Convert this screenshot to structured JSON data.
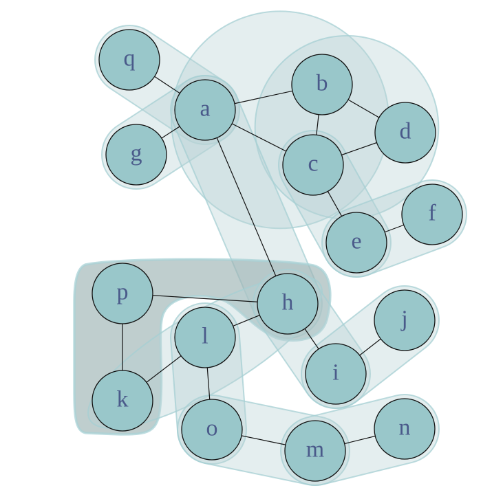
{
  "diagram": {
    "type": "hypergraph",
    "style": {
      "node_fill": "#99c7ca",
      "node_stroke": "#111111",
      "label_color": "#4a5a8a",
      "hyperedge_fill": "#b9d3d6",
      "hyperedge_stroke": "#a6cfd3",
      "highlighted_hyperedge_fill": "#9db4b3"
    },
    "nodes": [
      {
        "id": "q",
        "label": "q"
      },
      {
        "id": "a",
        "label": "a"
      },
      {
        "id": "g",
        "label": "g"
      },
      {
        "id": "b",
        "label": "b"
      },
      {
        "id": "c",
        "label": "c"
      },
      {
        "id": "d",
        "label": "d"
      },
      {
        "id": "e",
        "label": "e"
      },
      {
        "id": "f",
        "label": "f"
      },
      {
        "id": "p",
        "label": "p"
      },
      {
        "id": "h",
        "label": "h"
      },
      {
        "id": "l",
        "label": "l"
      },
      {
        "id": "k",
        "label": "k"
      },
      {
        "id": "i",
        "label": "i"
      },
      {
        "id": "j",
        "label": "j"
      },
      {
        "id": "o",
        "label": "o"
      },
      {
        "id": "m",
        "label": "m"
      },
      {
        "id": "n",
        "label": "n"
      }
    ],
    "edges": [
      [
        "q",
        "a"
      ],
      [
        "g",
        "a"
      ],
      [
        "a",
        "b"
      ],
      [
        "a",
        "c"
      ],
      [
        "a",
        "h"
      ],
      [
        "b",
        "c"
      ],
      [
        "b",
        "d"
      ],
      [
        "c",
        "d"
      ],
      [
        "c",
        "e"
      ],
      [
        "e",
        "f"
      ],
      [
        "p",
        "h"
      ],
      [
        "p",
        "k"
      ],
      [
        "k",
        "l"
      ],
      [
        "l",
        "h"
      ],
      [
        "l",
        "o"
      ],
      [
        "h",
        "i"
      ],
      [
        "i",
        "j"
      ],
      [
        "o",
        "m"
      ],
      [
        "m",
        "n"
      ]
    ],
    "hyperedges": [
      {
        "id": "he-q-a",
        "members": [
          "q",
          "a"
        ]
      },
      {
        "id": "he-g-a",
        "members": [
          "g",
          "a"
        ]
      },
      {
        "id": "he-a-b-c",
        "members": [
          "a",
          "b",
          "c"
        ]
      },
      {
        "id": "he-b-c-d",
        "members": [
          "b",
          "c",
          "d"
        ]
      },
      {
        "id": "he-c-e",
        "members": [
          "c",
          "e"
        ]
      },
      {
        "id": "he-e-f",
        "members": [
          "e",
          "f"
        ]
      },
      {
        "id": "he-a-h",
        "members": [
          "a",
          "h"
        ]
      },
      {
        "id": "he-p-h-k",
        "members": [
          "p",
          "h",
          "k"
        ],
        "highlighted": true
      },
      {
        "id": "he-k-l-h",
        "members": [
          "k",
          "l",
          "h"
        ]
      },
      {
        "id": "he-l-o",
        "members": [
          "l",
          "o"
        ]
      },
      {
        "id": "he-h-i",
        "members": [
          "h",
          "i"
        ]
      },
      {
        "id": "he-i-j",
        "members": [
          "i",
          "j"
        ]
      },
      {
        "id": "he-o-m",
        "members": [
          "o",
          "m"
        ]
      },
      {
        "id": "he-m-n",
        "members": [
          "m",
          "n"
        ]
      }
    ]
  }
}
